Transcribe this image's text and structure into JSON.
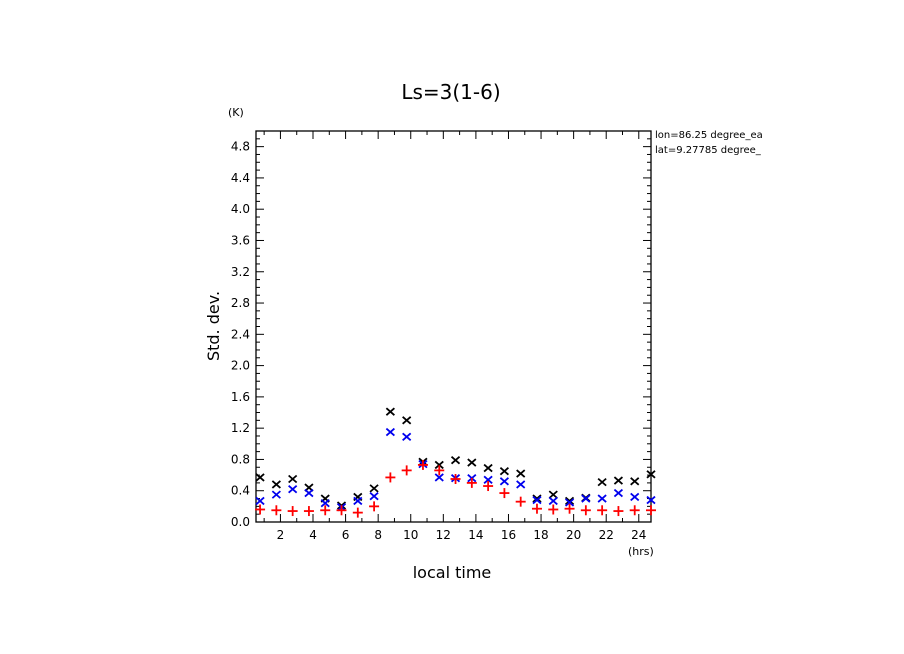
{
  "chart_data": {
    "type": "scatter",
    "title": "Ls=3(1-6)",
    "xlabel": "local time",
    "ylabel": "Std. dev.",
    "x_unit": "(hrs)",
    "y_unit": "(K)",
    "xlim": [
      0.5,
      24.75
    ],
    "ylim": [
      0,
      5.0
    ],
    "xticks": [
      2,
      4,
      6,
      8,
      10,
      12,
      14,
      16,
      18,
      20,
      22,
      24
    ],
    "xtick_labels": [
      "2",
      "4",
      "6",
      "8",
      "10",
      "12",
      "14",
      "16",
      "18",
      "20",
      "22",
      "24"
    ],
    "yticks": [
      0.0,
      0.4,
      0.8,
      1.2,
      1.6,
      2.0,
      2.4,
      2.8,
      3.2,
      3.6,
      4.0,
      4.4,
      4.8
    ],
    "ytick_labels": [
      "0.0",
      "0.4",
      "0.8",
      "1.2",
      "1.6",
      "2.0",
      "2.4",
      "2.8",
      "3.2",
      "3.6",
      "4.0",
      "4.4",
      "4.8"
    ],
    "annotations": [
      "lon=86.25 degree_ea",
      "lat=9.27785 degree_"
    ],
    "grid": false,
    "legend": "none",
    "series": [
      {
        "color": "#000000",
        "marker": "x",
        "x": [
          0.75,
          1.75,
          2.75,
          3.75,
          4.75,
          5.75,
          6.75,
          7.75,
          8.75,
          9.75,
          10.75,
          11.75,
          12.75,
          13.75,
          14.75,
          15.75,
          16.75,
          17.75,
          18.75,
          19.75,
          20.75,
          21.75,
          22.75,
          23.75,
          24.75
        ],
        "y": [
          0.57,
          0.48,
          0.55,
          0.44,
          0.3,
          0.21,
          0.32,
          0.43,
          1.41,
          1.3,
          0.77,
          0.73,
          0.79,
          0.76,
          0.69,
          0.65,
          0.62,
          0.3,
          0.35,
          0.27,
          0.31,
          0.51,
          0.53,
          0.52,
          0.61
        ]
      },
      {
        "color": "#0000ee",
        "marker": "x",
        "x": [
          0.75,
          1.75,
          2.75,
          3.75,
          4.75,
          5.75,
          6.75,
          7.75,
          8.75,
          9.75,
          10.75,
          11.75,
          12.75,
          13.75,
          14.75,
          15.75,
          16.75,
          17.75,
          18.75,
          19.75,
          20.75,
          21.75,
          22.75,
          23.75,
          24.75
        ],
        "y": [
          0.27,
          0.35,
          0.42,
          0.37,
          0.24,
          0.19,
          0.27,
          0.33,
          1.15,
          1.09,
          0.74,
          0.57,
          0.56,
          0.56,
          0.54,
          0.52,
          0.48,
          0.28,
          0.27,
          0.25,
          0.3,
          0.3,
          0.37,
          0.32,
          0.28
        ]
      },
      {
        "color": "#ff0000",
        "marker": "+",
        "x": [
          0.75,
          1.75,
          2.75,
          3.75,
          4.75,
          5.75,
          6.75,
          7.75,
          8.75,
          9.75,
          10.75,
          11.75,
          12.75,
          13.75,
          14.75,
          15.75,
          16.75,
          17.75,
          18.75,
          19.75,
          20.75,
          21.75,
          22.75,
          23.75,
          24.75
        ],
        "y": [
          0.16,
          0.15,
          0.14,
          0.14,
          0.15,
          0.15,
          0.12,
          0.2,
          0.57,
          0.66,
          0.73,
          0.66,
          0.55,
          0.5,
          0.46,
          0.37,
          0.26,
          0.17,
          0.16,
          0.17,
          0.15,
          0.15,
          0.14,
          0.15,
          0.15
        ]
      }
    ]
  }
}
